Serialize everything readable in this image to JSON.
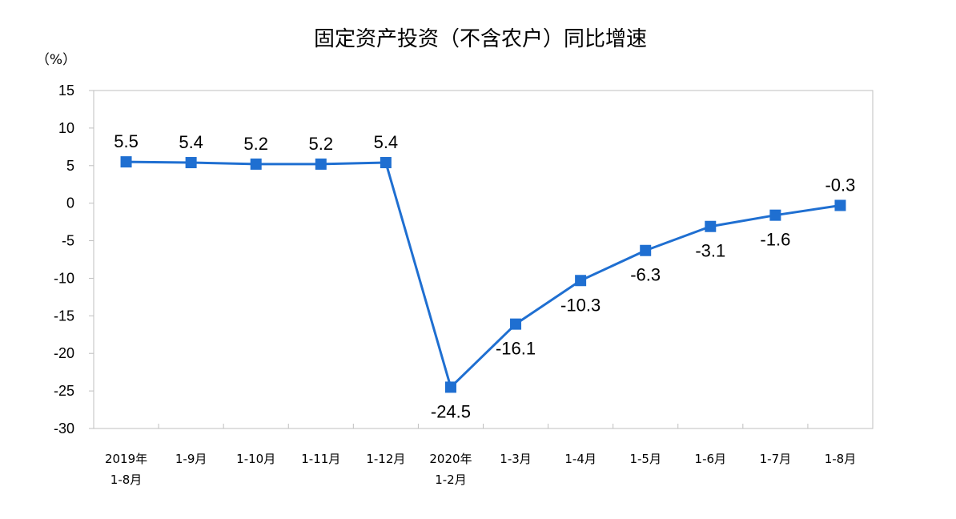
{
  "chart_data": {
    "type": "line",
    "title": "固定资产投资（不含农户）同比增速",
    "unit_label": "（%）",
    "categories": [
      [
        "2019年",
        "1-8月"
      ],
      [
        "1-9月"
      ],
      [
        "1-10月"
      ],
      [
        "1-11月"
      ],
      [
        "1-12月"
      ],
      [
        "2020年",
        "1-2月"
      ],
      [
        "1-3月"
      ],
      [
        "1-4月"
      ],
      [
        "1-5月"
      ],
      [
        "1-6月"
      ],
      [
        "1-7月"
      ],
      [
        "1-8月"
      ]
    ],
    "values": [
      5.5,
      5.4,
      5.2,
      5.2,
      5.4,
      -24.5,
      -16.1,
      -10.3,
      -6.3,
      -3.1,
      -1.6,
      -0.3
    ],
    "data_labels": [
      "5.5",
      "5.4",
      "5.2",
      "5.2",
      "5.4",
      "-24.5",
      "-16.1",
      "-10.3",
      "-6.3",
      "-3.1",
      "-1.6",
      "-0.3"
    ],
    "label_positions": [
      "above",
      "above",
      "above",
      "above",
      "above",
      "below",
      "below",
      "below",
      "below",
      "below",
      "below",
      "above"
    ],
    "ylim": [
      -30,
      15
    ],
    "yticks": [
      15,
      10,
      5,
      0,
      -5,
      -10,
      -15,
      -20,
      -25,
      -30
    ],
    "ytick_labels": [
      "15",
      "10",
      "5",
      "0",
      "-5",
      "-10",
      "-15",
      "-20",
      "-25",
      "-30"
    ],
    "grid": false,
    "colors": {
      "series": "#1f6fd1",
      "axis": "#bfbfbf"
    }
  }
}
